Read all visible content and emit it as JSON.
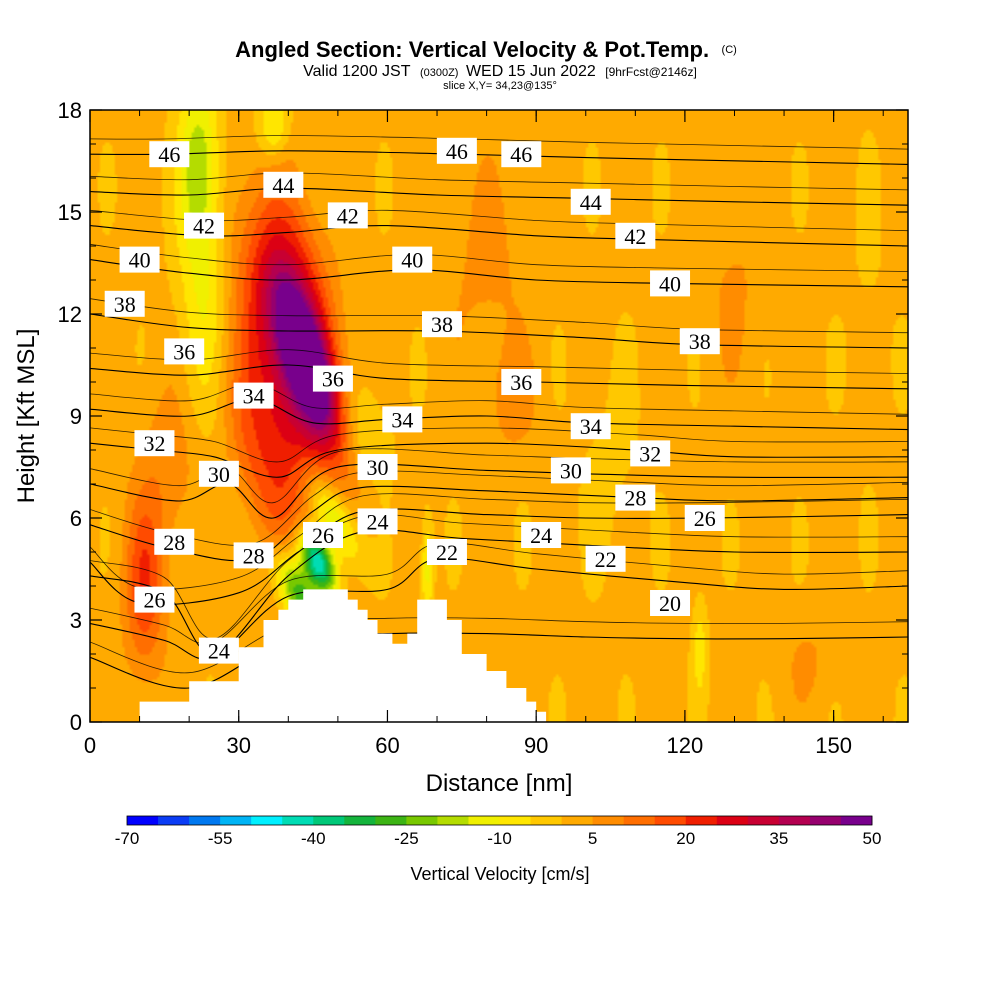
{
  "chart_data": {
    "type": "heatmap",
    "title": {
      "main": "Angled Section: Vertical Velocity & Pot.Temp.",
      "suffix": "(C)"
    },
    "subtitle": {
      "valid": "Valid 1200 JST",
      "utc": "(0300Z)",
      "date": "WED 15 Jun 2022",
      "fcst": "[9hrFcst@2146z]",
      "slice": "slice X,Y= 34,23@135°"
    },
    "xlabel": "Distance [nm]",
    "ylabel": "Height [Kft MSL]",
    "xlim": [
      0,
      165
    ],
    "ylim": [
      0,
      18
    ],
    "xticks": [
      0,
      30,
      60,
      90,
      120,
      150
    ],
    "yticks": [
      0,
      3,
      6,
      9,
      12,
      15,
      18
    ],
    "colorbar": {
      "label": "Vertical Velocity [cm/s]",
      "tick_values": [
        -70,
        -55,
        -40,
        -25,
        -10,
        5,
        20,
        35,
        50
      ],
      "tick_labels": [
        "-70",
        "-55",
        "-40",
        "-25",
        "-10",
        "5",
        "20",
        "35",
        "50"
      ],
      "colors": [
        "#0000ff",
        "#0a3cf5",
        "#0078f0",
        "#00b4f5",
        "#00f0ff",
        "#00dcb4",
        "#00c878",
        "#14b43c",
        "#3cb414",
        "#78c800",
        "#b4dc00",
        "#f0f000",
        "#ffe600",
        "#ffc800",
        "#ffaa00",
        "#ff8c00",
        "#ff6e00",
        "#ff4b00",
        "#f01e00",
        "#dc0014",
        "#c80032",
        "#b40050",
        "#96006e",
        "#78008c"
      ]
    },
    "terrain_profile": [
      [
        0,
        0
      ],
      [
        10,
        0
      ],
      [
        10,
        0.6
      ],
      [
        20,
        0.6
      ],
      [
        20,
        1.2
      ],
      [
        30,
        1.2
      ],
      [
        30,
        2.2
      ],
      [
        35,
        2.2
      ],
      [
        35,
        3.0
      ],
      [
        38,
        3.0
      ],
      [
        38,
        3.3
      ],
      [
        40,
        3.3
      ],
      [
        40,
        3.6
      ],
      [
        43,
        3.6
      ],
      [
        43,
        3.9
      ],
      [
        52,
        3.9
      ],
      [
        52,
        3.6
      ],
      [
        54,
        3.6
      ],
      [
        54,
        3.3
      ],
      [
        56,
        3.3
      ],
      [
        56,
        3.0
      ],
      [
        58,
        3.0
      ],
      [
        58,
        2.6
      ],
      [
        61,
        2.6
      ],
      [
        61,
        2.3
      ],
      [
        64,
        2.3
      ],
      [
        64,
        2.6
      ],
      [
        66,
        2.6
      ],
      [
        66,
        3.6
      ],
      [
        72,
        3.6
      ],
      [
        72,
        3.0
      ],
      [
        75,
        3.0
      ],
      [
        75,
        2.0
      ],
      [
        80,
        2.0
      ],
      [
        80,
        1.5
      ],
      [
        84,
        1.5
      ],
      [
        84,
        1.0
      ],
      [
        88,
        1.0
      ],
      [
        88,
        0.6
      ],
      [
        90,
        0.6
      ],
      [
        90,
        0.3
      ],
      [
        92,
        0.3
      ],
      [
        92,
        0
      ],
      [
        165,
        0
      ]
    ],
    "isentropes": [
      {
        "value": 20,
        "points": [
          [
            0,
            1.9
          ],
          [
            20,
            1.0
          ],
          [
            40,
            2.4
          ],
          [
            60,
            2.6
          ],
          [
            80,
            2.6
          ],
          [
            100,
            2.5
          ],
          [
            120,
            2.45
          ],
          [
            140,
            2.45
          ],
          [
            165,
            2.5
          ]
        ]
      },
      {
        "value": 22,
        "points": [
          [
            0,
            2.9
          ],
          [
            15,
            2.4
          ],
          [
            25,
            1.9
          ],
          [
            40,
            3.7
          ],
          [
            60,
            3.9
          ],
          [
            70,
            4.8
          ],
          [
            90,
            4.5
          ],
          [
            120,
            4.1
          ],
          [
            140,
            3.9
          ],
          [
            165,
            4.0
          ]
        ]
      },
      {
        "value": 24,
        "points": [
          [
            0,
            4.3
          ],
          [
            15,
            3.8
          ],
          [
            25,
            2.0
          ],
          [
            40,
            4.3
          ],
          [
            55,
            5.6
          ],
          [
            75,
            5.4
          ],
          [
            100,
            5.2
          ],
          [
            130,
            5.0
          ],
          [
            165,
            5.0
          ]
        ]
      },
      {
        "value": 26,
        "points": [
          [
            0,
            4.7
          ],
          [
            10,
            3.5
          ],
          [
            30,
            3.8
          ],
          [
            42,
            5.0
          ],
          [
            55,
            6.2
          ],
          [
            80,
            6.1
          ],
          [
            100,
            6.0
          ],
          [
            125,
            6.0
          ],
          [
            165,
            6.1
          ]
        ]
      },
      {
        "value": 28,
        "points": [
          [
            0,
            5.8
          ],
          [
            16,
            5.1
          ],
          [
            33,
            4.8
          ],
          [
            45,
            6.2
          ],
          [
            55,
            6.9
          ],
          [
            80,
            6.8
          ],
          [
            110,
            6.6
          ],
          [
            130,
            6.5
          ],
          [
            165,
            6.6
          ]
        ]
      },
      {
        "value": 30,
        "points": [
          [
            0,
            7.0
          ],
          [
            18,
            6.5
          ],
          [
            28,
            7.0
          ],
          [
            37,
            6.0
          ],
          [
            50,
            7.5
          ],
          [
            80,
            7.4
          ],
          [
            100,
            7.3
          ],
          [
            130,
            7.2
          ],
          [
            165,
            7.2
          ]
        ]
      },
      {
        "value": 32,
        "points": [
          [
            0,
            8.2
          ],
          [
            13,
            8.0
          ],
          [
            25,
            7.8
          ],
          [
            38,
            7.2
          ],
          [
            50,
            8.0
          ],
          [
            80,
            8.2
          ],
          [
            110,
            8.0
          ],
          [
            130,
            7.8
          ],
          [
            165,
            7.8
          ]
        ]
      },
      {
        "value": 34,
        "points": [
          [
            0,
            9.2
          ],
          [
            20,
            9.0
          ],
          [
            33,
            9.5
          ],
          [
            45,
            8.8
          ],
          [
            60,
            8.9
          ],
          [
            80,
            9.0
          ],
          [
            100,
            8.8
          ],
          [
            130,
            8.7
          ],
          [
            165,
            8.6
          ]
        ]
      },
      {
        "value": 36,
        "points": [
          [
            0,
            10.4
          ],
          [
            20,
            10.2
          ],
          [
            40,
            10.5
          ],
          [
            60,
            10.1
          ],
          [
            90,
            10.0
          ],
          [
            120,
            9.9
          ],
          [
            165,
            9.8
          ]
        ]
      },
      {
        "value": 38,
        "points": [
          [
            0,
            12.0
          ],
          [
            20,
            11.6
          ],
          [
            40,
            11.5
          ],
          [
            70,
            11.5
          ],
          [
            100,
            11.3
          ],
          [
            122,
            11.1
          ],
          [
            165,
            11.0
          ]
        ]
      },
      {
        "value": 40,
        "points": [
          [
            0,
            13.6
          ],
          [
            20,
            13.2
          ],
          [
            40,
            13.0
          ],
          [
            65,
            13.3
          ],
          [
            90,
            13.0
          ],
          [
            117,
            12.9
          ],
          [
            165,
            12.8
          ]
        ]
      },
      {
        "value": 42,
        "points": [
          [
            0,
            14.6
          ],
          [
            23,
            14.3
          ],
          [
            40,
            14.4
          ],
          [
            60,
            14.6
          ],
          [
            90,
            14.3
          ],
          [
            110,
            14.2
          ],
          [
            165,
            14.0
          ]
        ]
      },
      {
        "value": 44,
        "points": [
          [
            0,
            15.6
          ],
          [
            20,
            15.5
          ],
          [
            40,
            15.7
          ],
          [
            70,
            15.5
          ],
          [
            100,
            15.4
          ],
          [
            130,
            15.3
          ],
          [
            165,
            15.2
          ]
        ]
      },
      {
        "value": 46,
        "points": [
          [
            0,
            16.7
          ],
          [
            16,
            16.7
          ],
          [
            40,
            16.8
          ],
          [
            75,
            16.7
          ],
          [
            100,
            16.6
          ],
          [
            165,
            16.4
          ]
        ]
      }
    ],
    "contour_labels": [
      {
        "text": "46",
        "x": 16,
        "y": 16.7
      },
      {
        "text": "46",
        "x": 74,
        "y": 16.8
      },
      {
        "text": "46",
        "x": 87,
        "y": 16.7
      },
      {
        "text": "44",
        "x": 39,
        "y": 15.8
      },
      {
        "text": "44",
        "x": 101,
        "y": 15.3
      },
      {
        "text": "42",
        "x": 23,
        "y": 14.6
      },
      {
        "text": "42",
        "x": 52,
        "y": 14.9
      },
      {
        "text": "42",
        "x": 110,
        "y": 14.3
      },
      {
        "text": "40",
        "x": 10,
        "y": 13.6
      },
      {
        "text": "40",
        "x": 65,
        "y": 13.6
      },
      {
        "text": "40",
        "x": 117,
        "y": 12.9
      },
      {
        "text": "38",
        "x": 7,
        "y": 12.3
      },
      {
        "text": "38",
        "x": 71,
        "y": 11.7
      },
      {
        "text": "38",
        "x": 123,
        "y": 11.2
      },
      {
        "text": "36",
        "x": 19,
        "y": 10.9
      },
      {
        "text": "36",
        "x": 49,
        "y": 10.1
      },
      {
        "text": "36",
        "x": 87,
        "y": 10.0
      },
      {
        "text": "34",
        "x": 33,
        "y": 9.6
      },
      {
        "text": "34",
        "x": 63,
        "y": 8.9
      },
      {
        "text": "34",
        "x": 101,
        "y": 8.7
      },
      {
        "text": "32",
        "x": 13,
        "y": 8.2
      },
      {
        "text": "32",
        "x": 113,
        "y": 7.9
      },
      {
        "text": "30",
        "x": 26,
        "y": 7.3
      },
      {
        "text": "30",
        "x": 58,
        "y": 7.5
      },
      {
        "text": "30",
        "x": 97,
        "y": 7.4
      },
      {
        "text": "28",
        "x": 17,
        "y": 5.3
      },
      {
        "text": "28",
        "x": 33,
        "y": 4.9
      },
      {
        "text": "28",
        "x": 110,
        "y": 6.6
      },
      {
        "text": "26",
        "x": 47,
        "y": 5.5
      },
      {
        "text": "26",
        "x": 13,
        "y": 3.6
      },
      {
        "text": "26",
        "x": 124,
        "y": 6.0
      },
      {
        "text": "24",
        "x": 58,
        "y": 5.9
      },
      {
        "text": "24",
        "x": 91,
        "y": 5.5
      },
      {
        "text": "24",
        "x": 26,
        "y": 2.1
      },
      {
        "text": "22",
        "x": 72,
        "y": 5.0
      },
      {
        "text": "22",
        "x": 104,
        "y": 4.8
      },
      {
        "text": "20",
        "x": 117,
        "y": 3.5
      }
    ],
    "velocity_features": [
      {
        "x": 44,
        "y": 10.5,
        "sx": 4,
        "sy": 2.6,
        "rot": 0.55,
        "value": 42
      },
      {
        "x": 41,
        "y": 11.5,
        "sx": 7,
        "sy": 4,
        "rot": 0.5,
        "value": 22
      },
      {
        "x": 39,
        "y": 9.0,
        "sx": 6,
        "sy": 4,
        "rot": 0.45,
        "value": 18
      },
      {
        "x": 34,
        "y": 7.5,
        "sx": 5,
        "sy": 3.5,
        "rot": 0.45,
        "value": 12
      },
      {
        "x": 42,
        "y": 13.0,
        "sx": 6,
        "sy": 3,
        "rot": 0.3,
        "value": 12
      },
      {
        "x": 46,
        "y": 4.7,
        "sx": 2.5,
        "sy": 1.1,
        "rot": 0.8,
        "value": -48
      },
      {
        "x": 42,
        "y": 3.8,
        "sx": 3,
        "sy": 1.5,
        "rot": 0.8,
        "value": -32
      },
      {
        "x": 49,
        "y": 6.0,
        "sx": 3,
        "sy": 1.8,
        "rot": 0.8,
        "value": -22
      },
      {
        "x": 55,
        "y": 8.5,
        "sx": 5,
        "sy": 1.5,
        "rot": 0.6,
        "value": -9
      },
      {
        "x": 11,
        "y": 4.0,
        "sx": 4,
        "sy": 2.5,
        "rot": 0,
        "value": 18
      },
      {
        "x": 16,
        "y": 7.5,
        "sx": 6,
        "sy": 2.5,
        "rot": 0,
        "value": 7
      },
      {
        "x": 23,
        "y": 12.5,
        "sx": 5,
        "sy": 3.5,
        "rot": 0,
        "value": -12
      },
      {
        "x": 22,
        "y": 16.5,
        "sx": 4,
        "sy": 2.5,
        "rot": 0,
        "value": -19
      },
      {
        "x": 37,
        "y": 17.5,
        "sx": 3,
        "sy": 1,
        "rot": 0,
        "value": -14
      },
      {
        "x": 68,
        "y": 4.5,
        "sx": 1.2,
        "sy": 1.5,
        "rot": 0,
        "value": -14
      },
      {
        "x": 80,
        "y": 13.5,
        "sx": 8,
        "sy": 3,
        "rot": 0,
        "value": 5
      },
      {
        "x": 85,
        "y": 9.5,
        "sx": 5,
        "sy": 1.5,
        "rot": 0,
        "value": 6
      },
      {
        "x": 130,
        "y": 13.0,
        "sx": 6,
        "sy": 3,
        "rot": 0,
        "value": 4
      },
      {
        "x": 145,
        "y": 1.8,
        "sx": 5,
        "sy": 1.3,
        "rot": 0,
        "value": 4
      },
      {
        "x": 123,
        "y": 2.2,
        "sx": 1.5,
        "sy": 1.5,
        "rot": 0,
        "value": -9
      },
      {
        "x": 105,
        "y": 7.5,
        "sx": 6,
        "sy": 3,
        "rot": 0,
        "value": -3
      },
      {
        "x": 157,
        "y": 12.0,
        "sx": 4,
        "sy": 4,
        "rot": 0,
        "value": -2
      }
    ]
  }
}
